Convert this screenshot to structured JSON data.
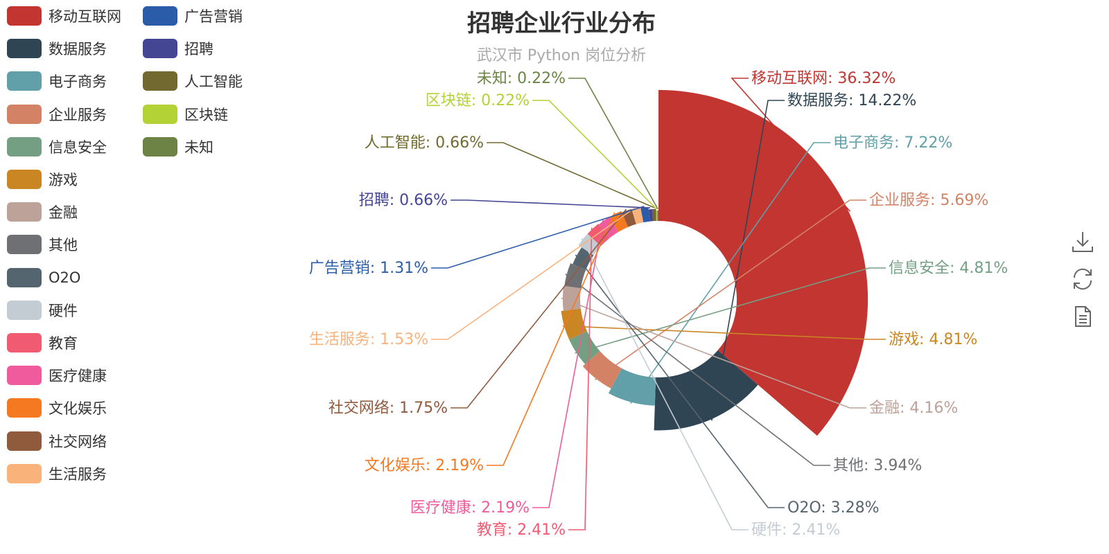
{
  "title": "招聘企业行业分布",
  "subtitle": "武汉市 Python 岗位分析",
  "chart_data": {
    "type": "pie",
    "variant": "nightingale-rose",
    "slices": [
      {
        "name": "移动互联网",
        "percent": 36.32,
        "label": "移动互联网: 36.32%",
        "color": "#c23531"
      },
      {
        "name": "数据服务",
        "percent": 14.22,
        "label": "数据服务: 14.22%",
        "color": "#2f4554"
      },
      {
        "name": "电子商务",
        "percent": 7.22,
        "label": "电子商务: 7.22%",
        "color": "#61a0a8"
      },
      {
        "name": "企业服务",
        "percent": 5.69,
        "label": "企业服务: 5.69%",
        "color": "#d48265"
      },
      {
        "name": "信息安全",
        "percent": 4.81,
        "label": "信息安全: 4.81%",
        "color": "#749f83"
      },
      {
        "name": "游戏",
        "percent": 4.81,
        "label": "游戏: 4.81%",
        "color": "#ca8622"
      },
      {
        "name": "金融",
        "percent": 4.16,
        "label": "金融: 4.16%",
        "color": "#bda29a"
      },
      {
        "name": "其他",
        "percent": 3.94,
        "label": "其他: 3.94%",
        "color": "#6e7074"
      },
      {
        "name": "O2O",
        "percent": 3.28,
        "label": "O2O: 3.28%",
        "color": "#546570"
      },
      {
        "name": "硬件",
        "percent": 2.41,
        "label": "硬件: 2.41%",
        "color": "#c4ccd3"
      },
      {
        "name": "教育",
        "percent": 2.41,
        "label": "教育: 2.41%",
        "color": "#f05b72"
      },
      {
        "name": "医疗健康",
        "percent": 2.19,
        "label": "医疗健康: 2.19%",
        "color": "#ef5b9c"
      },
      {
        "name": "文化娱乐",
        "percent": 2.19,
        "label": "文化娱乐: 2.19%",
        "color": "#f47920"
      },
      {
        "name": "社交网络",
        "percent": 1.75,
        "label": "社交网络: 1.75%",
        "color": "#905a3d"
      },
      {
        "name": "生活服务",
        "percent": 1.53,
        "label": "生活服务: 1.53%",
        "color": "#fab27b"
      },
      {
        "name": "广告营销",
        "percent": 1.31,
        "label": "广告营销: 1.31%",
        "color": "#2a5caa"
      },
      {
        "name": "招聘",
        "percent": 0.66,
        "label": "招聘: 0.66%",
        "color": "#444693"
      },
      {
        "name": "人工智能",
        "percent": 0.66,
        "label": "人工智能: 0.66%",
        "color": "#726930"
      },
      {
        "name": "区块链",
        "percent": 0.22,
        "label": "区块链: 0.22%",
        "color": "#b2d235"
      },
      {
        "name": "未知",
        "percent": 0.22,
        "label": "未知: 0.22%",
        "color": "#6d8346"
      }
    ],
    "legend": {
      "placement": "top-left",
      "items": [
        "移动互联网",
        "数据服务",
        "电子商务",
        "企业服务",
        "信息安全",
        "游戏",
        "金融",
        "其他",
        "O2O",
        "硬件",
        "教育",
        "医疗健康",
        "文化娱乐",
        "社交网络",
        "生活服务",
        "广告营销",
        "招聘",
        "人工智能",
        "区块链",
        "未知"
      ]
    }
  },
  "toolbox": [
    {
      "name": "download-icon"
    },
    {
      "name": "refresh-icon"
    },
    {
      "name": "data-view-icon"
    }
  ]
}
